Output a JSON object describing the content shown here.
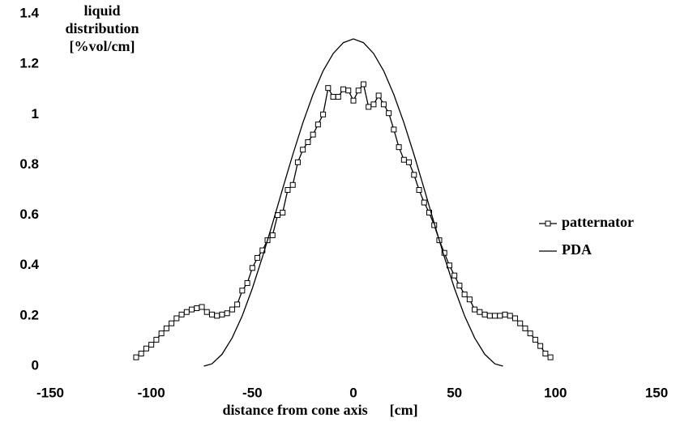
{
  "chart_data": {
    "type": "line",
    "y_label": "liquid distribution [%vol/cm]",
    "x_label": "distance from cone axis      [cm]",
    "xlim": [
      -150,
      150
    ],
    "xticks": [
      -150,
      -100,
      -50,
      0,
      50,
      100,
      150
    ],
    "ylim": [
      0,
      1.4
    ],
    "yticks": [
      0,
      0.2,
      0.4,
      0.6,
      0.8,
      1,
      1.2,
      1.4
    ],
    "grid": false,
    "legend": "right",
    "series": [
      {
        "name": "patternator",
        "color": "#000000",
        "marker": "square",
        "x": [
          -107.5,
          -105,
          -102.5,
          -100,
          -97.5,
          -95,
          -92.5,
          -90,
          -87.5,
          -85,
          -82.5,
          -80,
          -77.5,
          -75,
          -72.5,
          -70,
          -67.5,
          -65,
          -62.5,
          -60,
          -57.5,
          -55,
          -52.5,
          -50,
          -47.5,
          -45,
          -42.5,
          -40,
          -37.5,
          -35,
          -32.5,
          -30,
          -27.5,
          -25,
          -22.5,
          -20,
          -17.5,
          -15,
          -12.5,
          -10,
          -7.5,
          -5,
          -2.5,
          0,
          2.5,
          5,
          7.5,
          10,
          12.5,
          15,
          17.5,
          20,
          22.5,
          25,
          27.5,
          30,
          32.5,
          35,
          37.5,
          40,
          42.5,
          45,
          47.5,
          50,
          52.5,
          55,
          57.5,
          60,
          62.5,
          65,
          67.5,
          70,
          72.5,
          75,
          77.5,
          80,
          82.5,
          85,
          87.5,
          90,
          92.5,
          95,
          97.5
        ],
        "values": [
          0.035,
          0.05,
          0.07,
          0.085,
          0.105,
          0.13,
          0.15,
          0.17,
          0.19,
          0.205,
          0.215,
          0.225,
          0.23,
          0.235,
          0.215,
          0.205,
          0.2,
          0.205,
          0.21,
          0.225,
          0.245,
          0.3,
          0.33,
          0.39,
          0.43,
          0.46,
          0.5,
          0.52,
          0.6,
          0.61,
          0.7,
          0.72,
          0.81,
          0.86,
          0.89,
          0.92,
          0.96,
          1.0,
          1.105,
          1.07,
          1.07,
          1.1,
          1.095,
          1.055,
          1.095,
          1.12,
          1.03,
          1.04,
          1.075,
          1.04,
          1.005,
          0.94,
          0.87,
          0.82,
          0.81,
          0.76,
          0.7,
          0.65,
          0.61,
          0.56,
          0.5,
          0.45,
          0.4,
          0.36,
          0.32,
          0.285,
          0.265,
          0.225,
          0.215,
          0.205,
          0.2,
          0.2,
          0.2,
          0.205,
          0.2,
          0.19,
          0.17,
          0.15,
          0.13,
          0.105,
          0.08,
          0.05,
          0.035
        ]
      },
      {
        "name": "PDA",
        "color": "#000000",
        "x": [
          -74,
          -70,
          -65,
          -60,
          -55,
          -50,
          -45,
          -40,
          -35,
          -30,
          -25,
          -20,
          -15,
          -10,
          -5,
          0,
          5,
          10,
          15,
          20,
          25,
          30,
          35,
          40,
          45,
          50,
          55,
          60,
          65,
          70,
          74
        ],
        "values": [
          0,
          0.009,
          0.047,
          0.112,
          0.2,
          0.309,
          0.434,
          0.567,
          0.705,
          0.84,
          0.967,
          1.079,
          1.173,
          1.242,
          1.285,
          1.3,
          1.285,
          1.242,
          1.173,
          1.079,
          0.967,
          0.84,
          0.705,
          0.567,
          0.434,
          0.309,
          0.2,
          0.112,
          0.047,
          0.009,
          0
        ]
      }
    ]
  }
}
